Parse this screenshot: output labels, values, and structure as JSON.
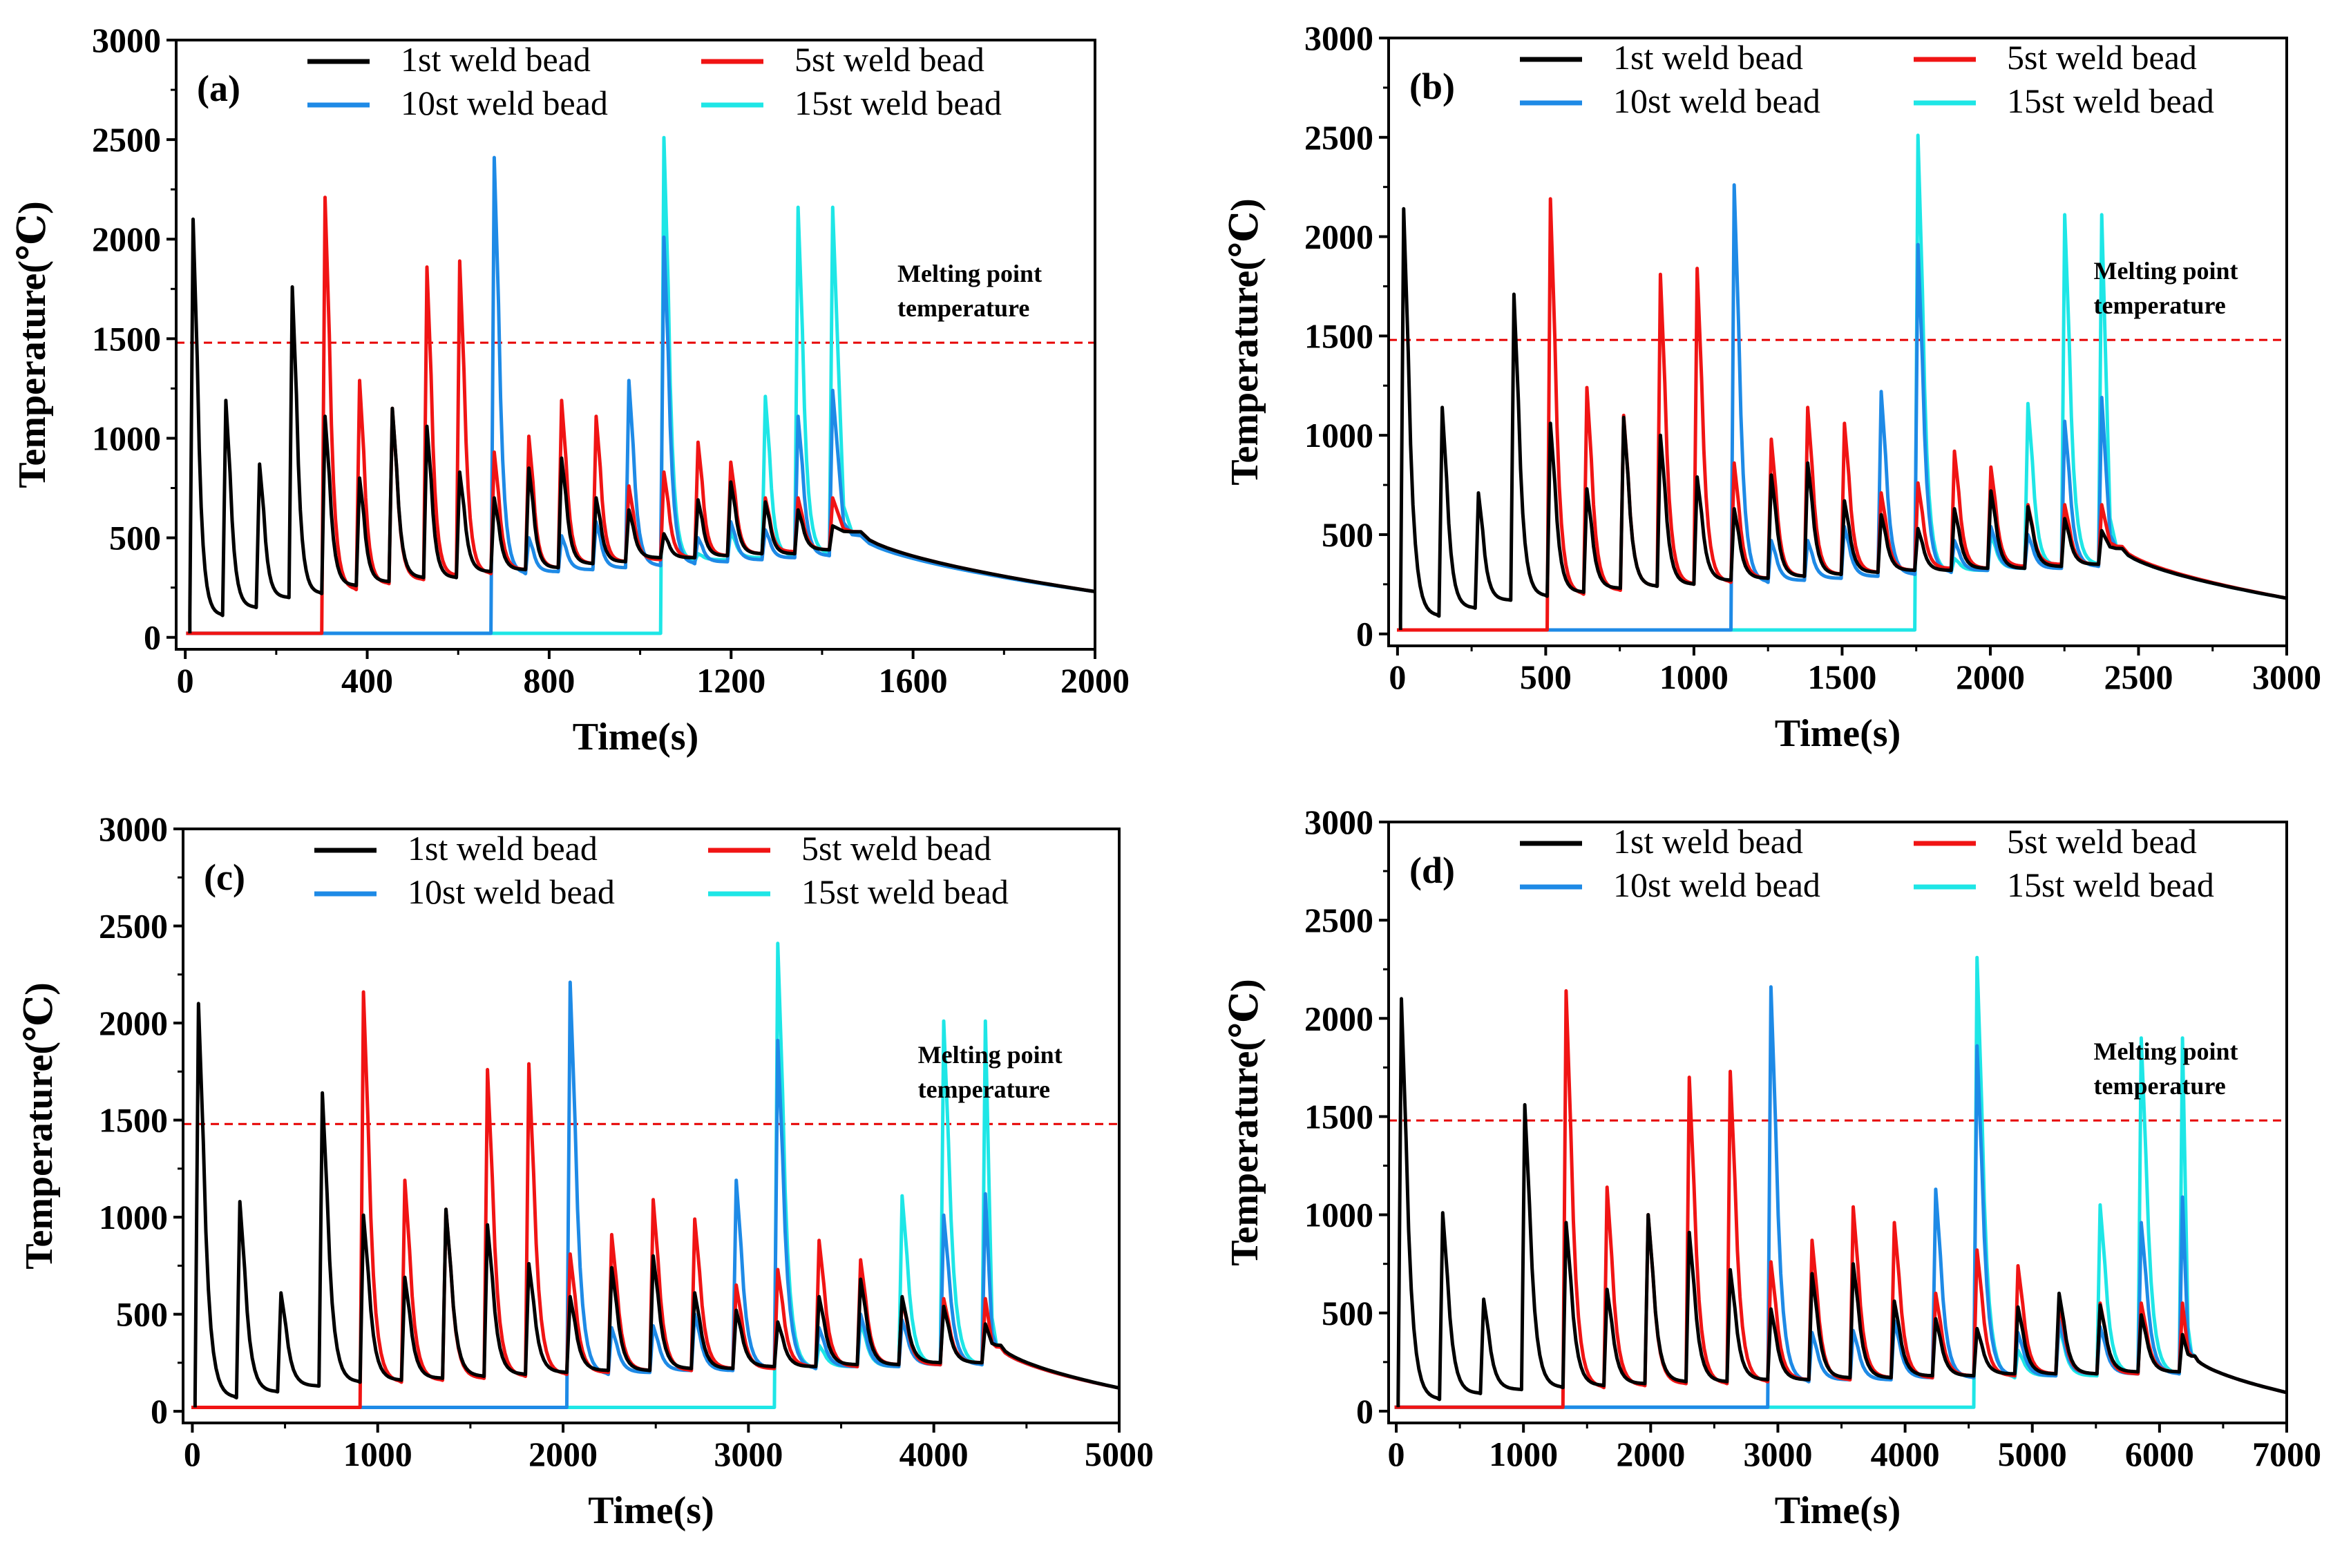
{
  "figure": {
    "colors": {
      "bead1": "#000000",
      "bead5": "#f01414",
      "bead10": "#1e8ae6",
      "bead15": "#1ee6e6",
      "melt_line": "#e60000"
    },
    "legend_labels": [
      "1st weld bead",
      "5st weld bead",
      "10st weld bead",
      "15st weld bead"
    ]
  },
  "chart_data": [
    {
      "type": "line",
      "panel_label": "(a)",
      "xlabel": "Time(s)",
      "ylabel": "Temperature(℃)",
      "xlim": [
        -20,
        2000
      ],
      "ylim": [
        -60,
        3000
      ],
      "xticks": [
        0,
        400,
        800,
        1200,
        1600,
        2000
      ],
      "yticks": [
        0,
        500,
        1000,
        1500,
        2000,
        2500,
        3000
      ],
      "melting_point": 1480,
      "annotation": [
        "Melting point",
        "temperature"
      ],
      "series_start": [
        10,
        300,
        672,
        1045
      ],
      "bead_starts": [
        10,
        82,
        156,
        228,
        300,
        376,
        448,
        524,
        596,
        672,
        748,
        820,
        896,
        968,
        1045,
        1120,
        1192,
        1268,
        1340,
        1416
      ],
      "end_time": 2000,
      "end_temp": 230,
      "peaks": {
        "black": [
          2100,
          1190,
          870,
          1760,
          1110,
          800,
          1150,
          1060,
          830,
          700,
          850,
          900,
          700,
          640,
          520,
          690,
          780,
          680,
          640,
          560
        ],
        "red": [
          2210,
          1290,
          1150,
          1860,
          1890,
          930,
          1010,
          1190,
          1110,
          760,
          830,
          980,
          880,
          700
        ],
        "blue": [
          2410,
          500,
          510,
          580,
          1290,
          2010,
          500,
          580,
          540,
          1110,
          1240
        ],
        "cyan": [
          2510,
          420,
          530,
          1210,
          2160
        ]
      },
      "troughs": {
        "black": [
          110,
          150,
          200,
          220,
          260,
          280,
          300,
          300,
          330,
          340,
          350,
          370,
          380,
          400,
          400,
          410,
          420,
          420,
          440,
          450
        ],
        "red": [
          240,
          270,
          290,
          310,
          320,
          340,
          350,
          370,
          380,
          390,
          400,
          410,
          420,
          430,
          440,
          450
        ],
        "blue": [
          320,
          330,
          340,
          350,
          360,
          370,
          380,
          390,
          400,
          410,
          420,
          430
        ],
        "cyan": [
          380,
          390,
          400,
          410,
          420,
          430
        ]
      }
    },
    {
      "type": "line",
      "panel_label": "(b)",
      "xlabel": "Time(s)",
      "ylabel": "Temperature(℃)",
      "xlim": [
        -30,
        3000
      ],
      "ylim": [
        -60,
        3000
      ],
      "xticks": [
        0,
        500,
        1000,
        1500,
        2000,
        2500,
        3000
      ],
      "yticks": [
        0,
        500,
        1000,
        1500,
        2000,
        2500,
        3000
      ],
      "melting_point": 1480,
      "annotation": [
        "Melting point",
        "temperature"
      ],
      "series_start": [
        10,
        505,
        1125,
        1745
      ],
      "bead_starts": [
        10,
        140,
        262,
        382,
        505,
        628,
        752,
        876,
        1000,
        1125,
        1250,
        1373,
        1497,
        1621,
        1745,
        1868,
        1991,
        2116,
        2240,
        2365
      ],
      "end_time": 3000,
      "end_temp": 180,
      "peaks": {
        "black": [
          2140,
          1140,
          710,
          1710,
          1060,
          730,
          1090,
          1000,
          790,
          630,
          800,
          860,
          670,
          600,
          530,
          630,
          720,
          640,
          580,
          520
        ],
        "red": [
          2190,
          1240,
          1100,
          1810,
          1840,
          860,
          980,
          1140,
          1060,
          710,
          760,
          920,
          840,
          650
        ],
        "blue": [
          2260,
          470,
          470,
          540,
          1220,
          1960,
          470,
          540,
          500,
          1070,
          1190
        ],
        "cyan": [
          2510,
          380,
          500,
          1160,
          2110
        ]
      },
      "troughs": {
        "black": [
          90,
          130,
          170,
          190,
          210,
          230,
          240,
          250,
          270,
          280,
          290,
          300,
          310,
          320,
          320,
          330,
          330,
          340,
          350,
          350
        ],
        "red": [
          200,
          220,
          240,
          250,
          260,
          280,
          290,
          300,
          310,
          320,
          330,
          330,
          340,
          350,
          350,
          360
        ],
        "blue": [
          260,
          270,
          280,
          290,
          300,
          310,
          320,
          330,
          330,
          340,
          350,
          350
        ],
        "cyan": [
          310,
          320,
          330,
          340,
          350,
          350
        ]
      }
    },
    {
      "type": "line",
      "panel_label": "(c)",
      "xlabel": "Time(s)",
      "ylabel": "Temperature(℃)",
      "xlim": [
        -50,
        5000
      ],
      "ylim": [
        -60,
        3000
      ],
      "xticks": [
        0,
        1000,
        2000,
        3000,
        4000,
        5000
      ],
      "yticks": [
        0,
        500,
        1000,
        1500,
        2000,
        2500,
        3000
      ],
      "melting_point": 1480,
      "annotation": [
        "Melting point",
        "temperature"
      ],
      "series_start": [
        15,
        905,
        2020,
        3140
      ],
      "bead_starts": [
        15,
        238,
        460,
        683,
        905,
        1128,
        1350,
        1574,
        1797,
        2020,
        2244,
        2468,
        2692,
        2916,
        3140,
        3363,
        3587,
        3811,
        4035,
        4260
      ],
      "end_time": 5000,
      "end_temp": 120,
      "peaks": {
        "black": [
          2100,
          1080,
          610,
          1640,
          1010,
          690,
          1040,
          960,
          760,
          590,
          740,
          800,
          610,
          520,
          460,
          590,
          680,
          590,
          540,
          450
        ],
        "red": [
          2160,
          1190,
          1040,
          1760,
          1790,
          810,
          910,
          1090,
          990,
          650,
          730,
          880,
          780,
          580
        ],
        "blue": [
          2210,
          430,
          440,
          500,
          1190,
          1910,
          430,
          500,
          470,
          1010,
          1120
        ],
        "cyan": [
          2410,
          340,
          460,
          1110,
          2010
        ]
      },
      "troughs": {
        "black": [
          70,
          100,
          130,
          150,
          160,
          170,
          180,
          190,
          200,
          210,
          210,
          220,
          220,
          230,
          230,
          240,
          240,
          250,
          250,
          260
        ],
        "red": [
          150,
          160,
          170,
          180,
          190,
          200,
          210,
          210,
          220,
          220,
          230,
          230,
          240,
          240,
          250,
          250
        ],
        "blue": [
          190,
          200,
          210,
          210,
          220,
          220,
          230,
          230,
          240,
          240,
          250,
          250
        ],
        "cyan": [
          220,
          230,
          230,
          240,
          240,
          250
        ]
      }
    },
    {
      "type": "line",
      "panel_label": "(d)",
      "xlabel": "Time(s)",
      "ylabel": "Temperature(℃)",
      "xlim": [
        -60,
        7000
      ],
      "ylim": [
        -60,
        3000
      ],
      "xticks": [
        0,
        1000,
        2000,
        3000,
        4000,
        5000,
        6000,
        7000
      ],
      "yticks": [
        0,
        500,
        1000,
        1500,
        2000,
        2500,
        3000
      ],
      "melting_point": 1480,
      "annotation": [
        "Melting point",
        "temperature"
      ],
      "series_start": [
        15,
        1310,
        2920,
        4540
      ],
      "bead_starts": [
        15,
        340,
        662,
        985,
        1310,
        1632,
        1955,
        2278,
        2600,
        2920,
        3243,
        3567,
        3890,
        4215,
        4540,
        4862,
        5185,
        5508,
        5831,
        6155
      ],
      "end_time": 7000,
      "end_temp": 95,
      "peaks": {
        "black": [
          2100,
          1010,
          570,
          1560,
          960,
          620,
          1000,
          910,
          720,
          520,
          700,
          750,
          560,
          470,
          420,
          530,
          600,
          540,
          490,
          390
        ],
        "red": [
          2140,
          1140,
          1000,
          1700,
          1730,
          760,
          870,
          1040,
          960,
          600,
          820,
          740,
          550
        ],
        "blue": [
          2160,
          400,
          410,
          460,
          1130,
          1860,
          400,
          460,
          430,
          960,
          1090
        ],
        "cyan": [
          2310,
          310,
          430,
          1050,
          1900
        ]
      },
      "troughs": {
        "black": [
          60,
          90,
          110,
          120,
          130,
          140,
          150,
          150,
          160,
          160,
          170,
          170,
          180,
          180,
          190,
          190,
          190,
          200,
          200,
          200
        ],
        "red": [
          120,
          130,
          140,
          140,
          150,
          160,
          160,
          170,
          170,
          180,
          180,
          190,
          190,
          190,
          200,
          200
        ],
        "blue": [
          150,
          160,
          160,
          170,
          170,
          180,
          180,
          190,
          190,
          190,
          200,
          200
        ],
        "cyan": [
          170,
          180,
          180,
          190,
          190,
          200
        ]
      }
    }
  ]
}
